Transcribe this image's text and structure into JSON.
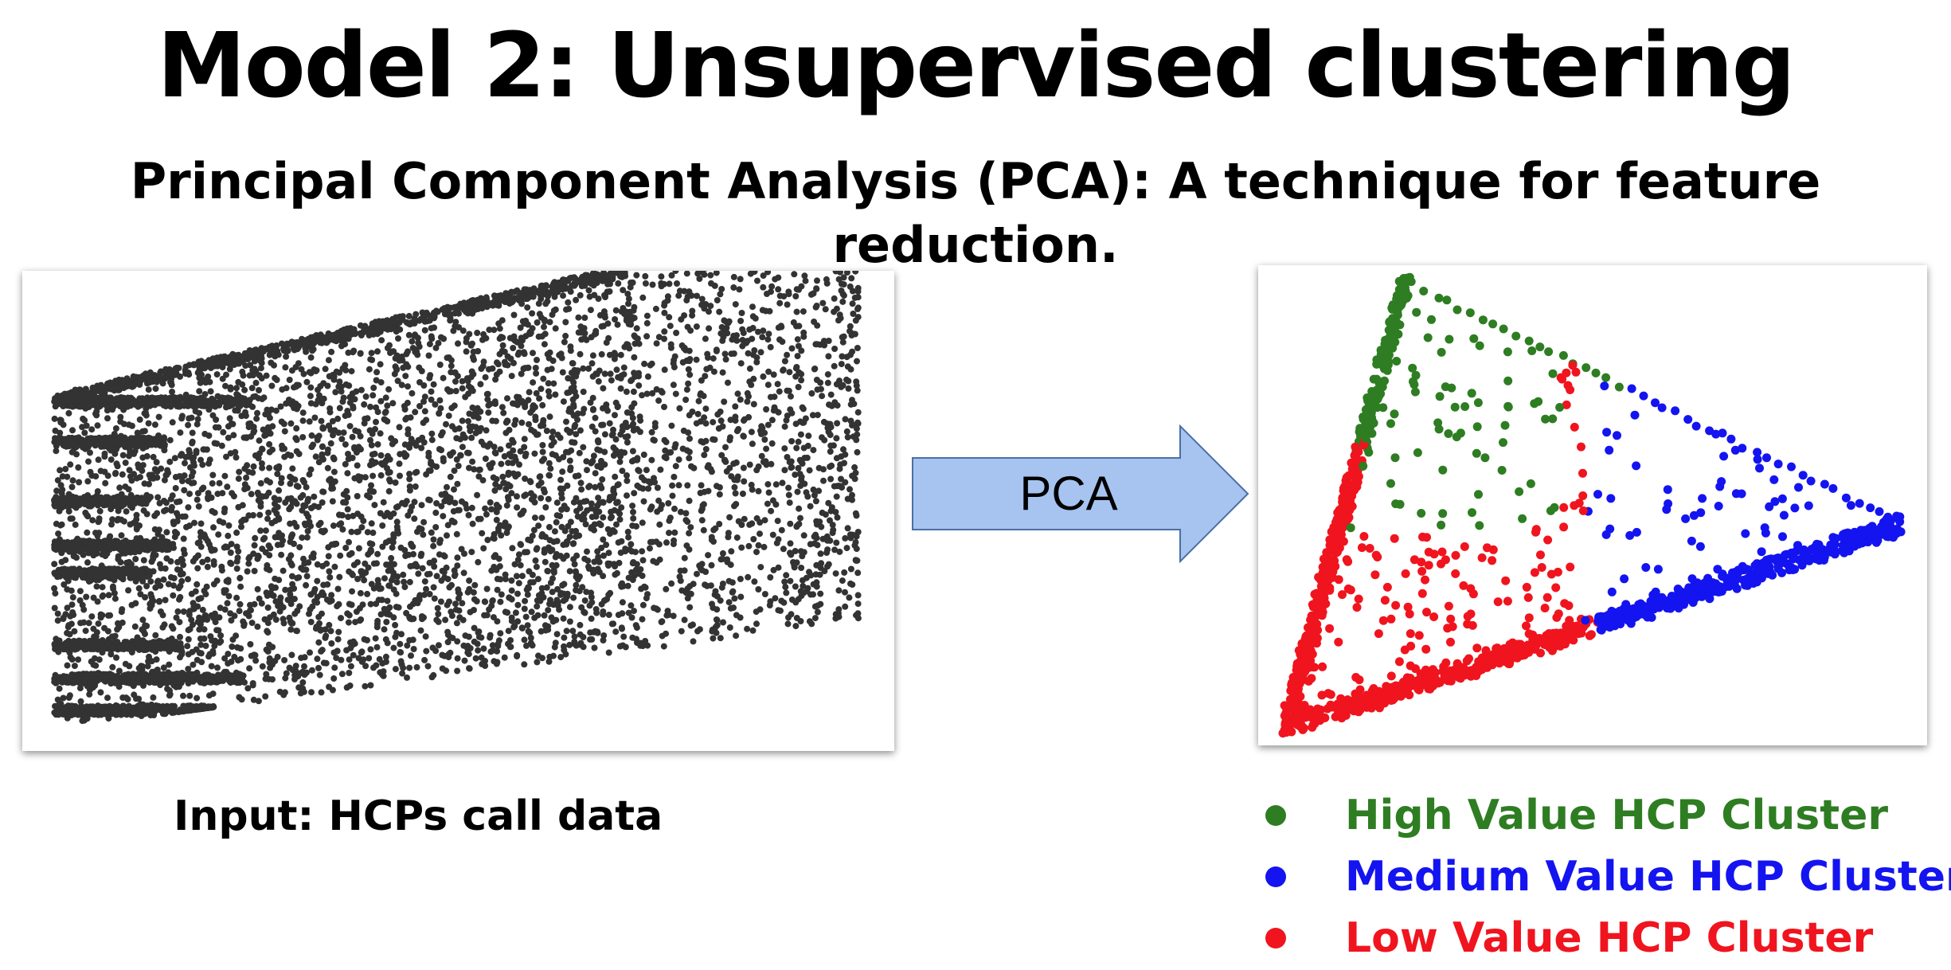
{
  "slide": {
    "title": "Model 2: Unsupervised clustering",
    "subtitle": "Principal Component Analysis (PCA): A technique for feature reduction."
  },
  "input": {
    "caption": "Input: HCPs call data",
    "point_color": "#333333"
  },
  "arrow": {
    "label": "PCA",
    "fill": "#A7C4F0",
    "stroke": "#4A6FA5"
  },
  "legend": [
    {
      "label": "High Value HCP Cluster",
      "color": "#2E7D22"
    },
    {
      "label": "Medium Value HCP Cluster",
      "color": "#1414F0"
    },
    {
      "label": "Low Value HCP Cluster",
      "color": "#F0141E"
    }
  ]
}
